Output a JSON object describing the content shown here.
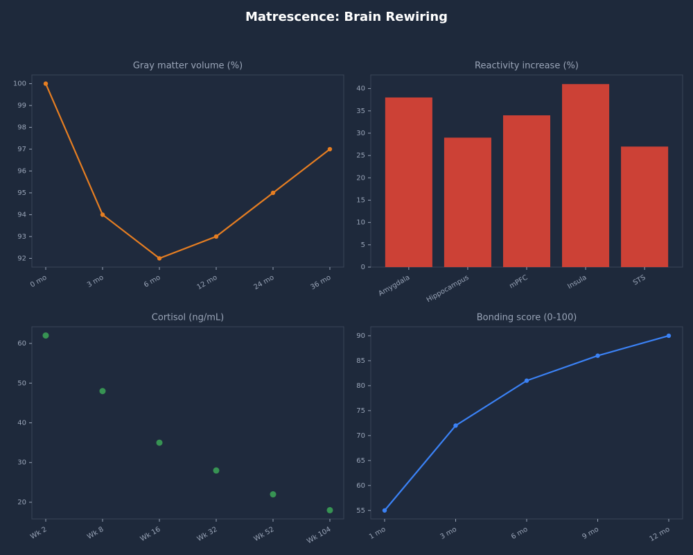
{
  "title": "Matrescence: Brain Rewiring",
  "chart_data": [
    {
      "type": "line",
      "title": "Gray matter volume (%)",
      "categories": [
        "0 mo",
        "3 mo",
        "6 mo",
        "12 mo",
        "24 mo",
        "36 mo"
      ],
      "values": [
        100,
        94,
        92,
        93,
        95,
        97
      ],
      "color": "#e67e22",
      "ylim": [
        91.6,
        100.4
      ],
      "yticks": [
        92,
        93,
        94,
        95,
        96,
        97,
        98,
        99,
        100
      ]
    },
    {
      "type": "bar",
      "title": "Reactivity increase (%)",
      "categories": [
        "Amygdala",
        "Hippocampus",
        "mPFC",
        "Insula",
        "STS"
      ],
      "values": [
        38,
        29,
        34,
        41,
        27
      ],
      "color": "#cc4136",
      "ylim": [
        0,
        43.05
      ],
      "yticks": [
        0,
        5,
        10,
        15,
        20,
        25,
        30,
        35,
        40
      ]
    },
    {
      "type": "scatter",
      "title": "Cortisol (ng/mL)",
      "categories": [
        "Wk 2",
        "Wk 8",
        "Wk 16",
        "Wk 32",
        "Wk 52",
        "Wk 104"
      ],
      "values": [
        62,
        48,
        35,
        28,
        22,
        18
      ],
      "color": "#3a9e55",
      "ylim": [
        15.8,
        64.2
      ],
      "yticks": [
        20,
        30,
        40,
        50,
        60
      ]
    },
    {
      "type": "line",
      "title": "Bonding score (0-100)",
      "categories": [
        "1 mo",
        "3 mo",
        "6 mo",
        "9 mo",
        "12 mo"
      ],
      "values": [
        55,
        72,
        81,
        86,
        90
      ],
      "color": "#3b82f6",
      "ylim": [
        53.3,
        91.8
      ],
      "yticks": [
        55,
        60,
        65,
        70,
        75,
        80,
        85,
        90
      ]
    }
  ]
}
